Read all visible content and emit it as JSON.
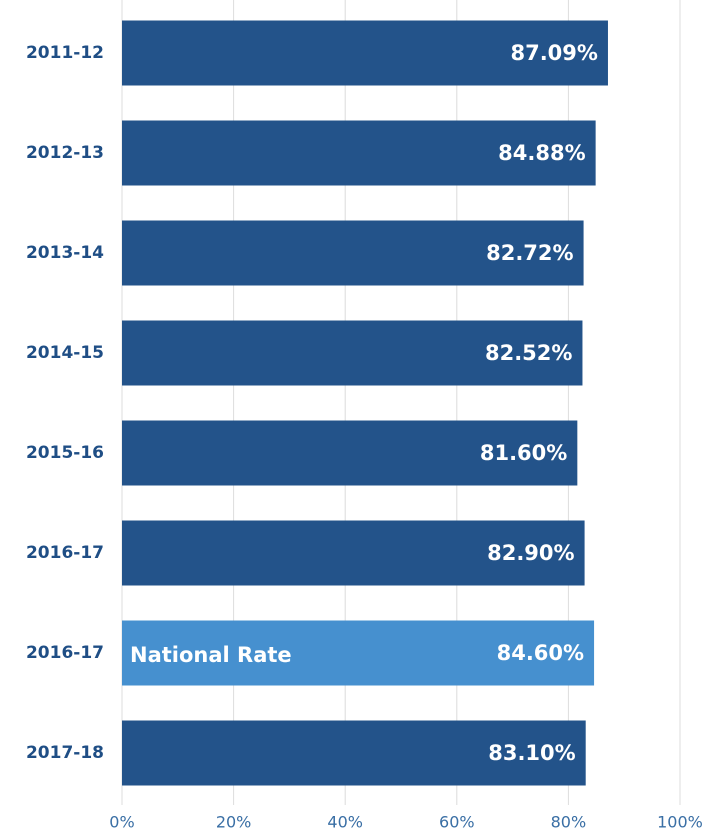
{
  "chart_data": {
    "type": "barh",
    "categories": [
      "2011-12",
      "2012-13",
      "2013-14",
      "2014-15",
      "2015-16",
      "2016-17",
      "2016-17",
      "2017-18"
    ],
    "values": [
      87.09,
      84.88,
      82.72,
      82.52,
      81.6,
      82.9,
      84.6,
      83.1
    ],
    "value_labels": [
      "87.09%",
      "84.88%",
      "82.72%",
      "82.52%",
      "81.60%",
      "82.90%",
      "84.60%",
      "83.10%"
    ],
    "bar_labels": [
      null,
      null,
      null,
      null,
      null,
      null,
      "National Rate",
      null
    ],
    "colors": [
      "#23538a",
      "#23538a",
      "#23538a",
      "#23538a",
      "#23538a",
      "#23538a",
      "#4690cf",
      "#23538a"
    ],
    "xlim": [
      0,
      100
    ],
    "xticks": [
      {
        "value": 0,
        "label": "0%"
      },
      {
        "value": 20,
        "label": "20%"
      },
      {
        "value": 40,
        "label": "40%"
      },
      {
        "value": 60,
        "label": "60%"
      },
      {
        "value": 80,
        "label": "80%"
      },
      {
        "value": 100,
        "label": "100%"
      }
    ],
    "grid": true
  }
}
